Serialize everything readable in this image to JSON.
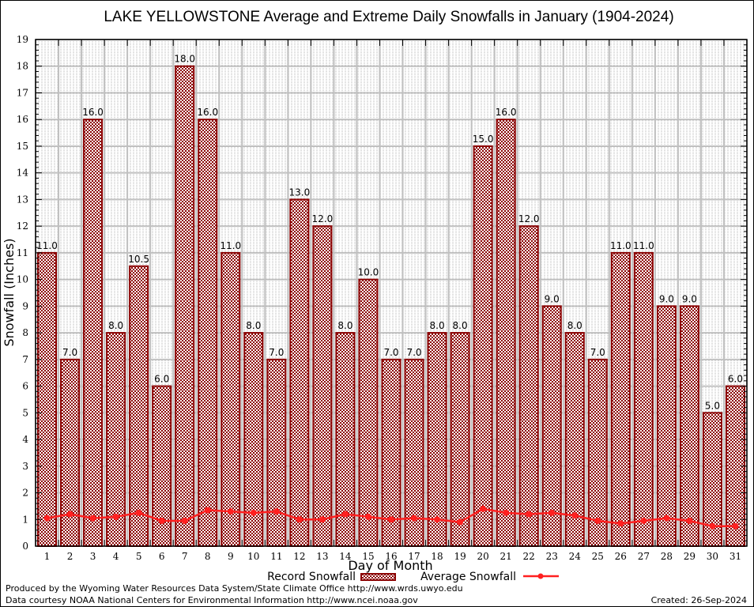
{
  "chart_data": {
    "type": "bar",
    "title": "LAKE YELLOWSTONE Average and Extreme Daily Snowfalls in January (1904-2024)",
    "xlabel": "Day of Month",
    "ylabel": "Snowfall (Inches)",
    "ylim": [
      0,
      19
    ],
    "yticks": [
      0,
      1,
      2,
      3,
      4,
      5,
      6,
      7,
      8,
      9,
      10,
      11,
      12,
      13,
      14,
      15,
      16,
      17,
      18,
      19
    ],
    "grid": true,
    "legend_position": "bottom-center",
    "categories": [
      "1",
      "2",
      "3",
      "4",
      "5",
      "6",
      "7",
      "8",
      "9",
      "10",
      "11",
      "12",
      "13",
      "14",
      "15",
      "16",
      "17",
      "18",
      "19",
      "20",
      "21",
      "22",
      "23",
      "24",
      "25",
      "26",
      "27",
      "28",
      "29",
      "30",
      "31"
    ],
    "series": [
      {
        "name": "Record Snowfall",
        "kind": "bar",
        "color": "#8b0000",
        "values": [
          11.0,
          7.0,
          16.0,
          8.0,
          10.5,
          6.0,
          18.0,
          16.0,
          11.0,
          8.0,
          7.0,
          13.0,
          12.0,
          8.0,
          10.0,
          7.0,
          7.0,
          8.0,
          8.0,
          15.0,
          16.0,
          12.0,
          9.0,
          8.0,
          7.0,
          11.0,
          11.0,
          9.0,
          9.0,
          5.0,
          6.0
        ],
        "labels": [
          "11.0",
          "7.0",
          "16.0",
          "8.0",
          "10.5",
          "6.0",
          "18.0",
          "16.0",
          "11.0",
          "8.0",
          "7.0",
          "13.0",
          "12.0",
          "8.0",
          "10.0",
          "7.0",
          "7.0",
          "8.0",
          "8.0",
          "15.0",
          "16.0",
          "12.0",
          "9.0",
          "8.0",
          "7.0",
          "11.0",
          "11.0",
          "9.0",
          "9.0",
          "5.0",
          "6.0"
        ]
      },
      {
        "name": "Average Snowfall",
        "kind": "line",
        "color": "#ff2020",
        "values": [
          1.05,
          1.2,
          1.05,
          1.1,
          1.25,
          0.95,
          0.95,
          1.35,
          1.3,
          1.25,
          1.3,
          1.0,
          1.0,
          1.2,
          1.1,
          1.0,
          1.05,
          1.0,
          0.9,
          1.4,
          1.25,
          1.2,
          1.25,
          1.15,
          0.95,
          0.85,
          0.95,
          1.05,
          0.95,
          0.75,
          0.75
        ]
      }
    ]
  },
  "footer": {
    "produced_by": "Produced by the Wyoming Water Resources Data System/State Climate Office http://www.wrds.uwyo.edu",
    "data_courtesy": "Data courtesy NOAA National Centers for Environmental Information http://www.ncei.noaa.gov",
    "created": "Created: 26-Sep-2024"
  }
}
